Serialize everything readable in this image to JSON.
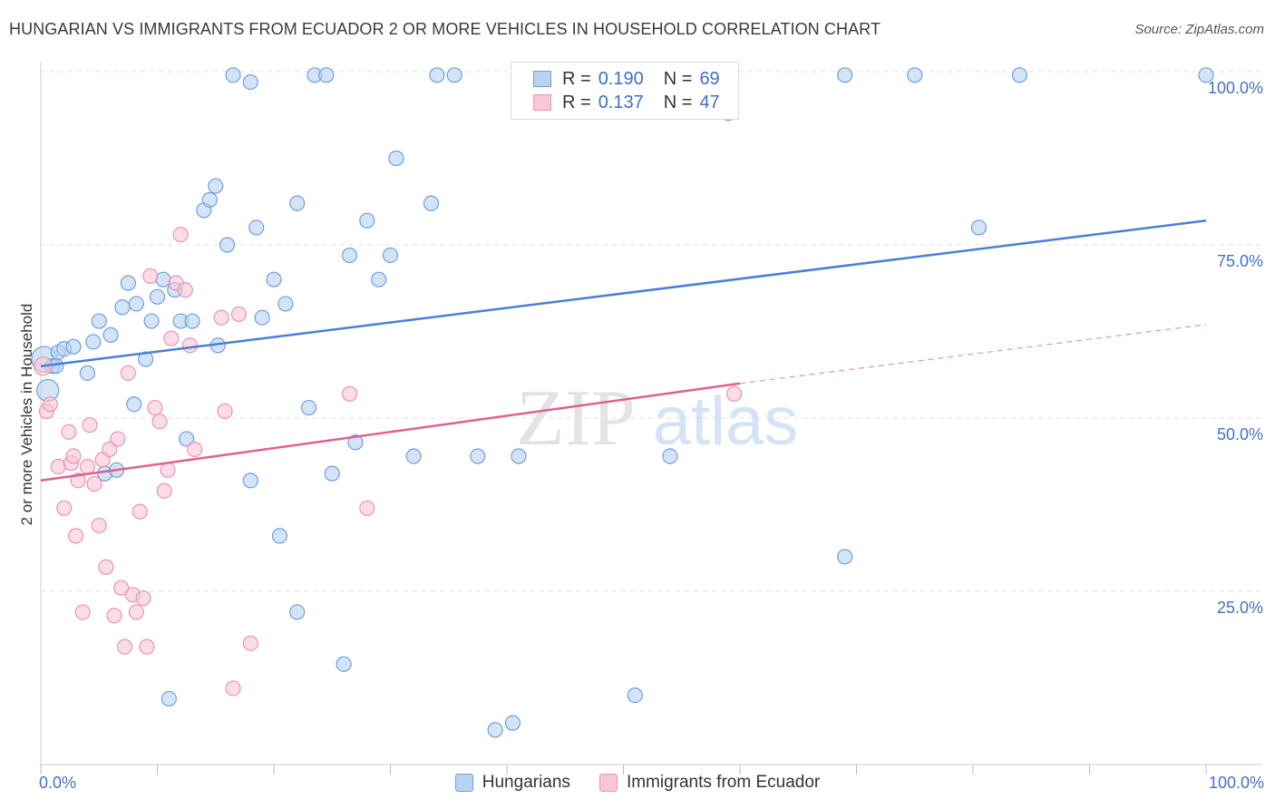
{
  "chart_data": {
    "type": "scatter",
    "title": "HUNGARIAN VS IMMIGRANTS FROM ECUADOR 2 OR MORE VEHICLES IN HOUSEHOLD CORRELATION CHART",
    "source": "Source: ZipAtlas.com",
    "ylabel": "2 or more Vehicles in Household",
    "xlim": [
      0,
      100
    ],
    "ylim": [
      0,
      100
    ],
    "x_tick_labels": [
      "0.0%",
      "100.0%"
    ],
    "y_ticks": [
      {
        "value": 25,
        "label": "25.0%"
      },
      {
        "value": 50,
        "label": "50.0%"
      },
      {
        "value": 75,
        "label": "75.0%"
      },
      {
        "value": 100,
        "label": "100.0%"
      }
    ],
    "watermark": {
      "part1": "ZIP",
      "part2": "atlas"
    },
    "legend": {
      "r_label": "R =",
      "n_label": "N =",
      "rows": [
        {
          "r": "0.190",
          "n": "69"
        },
        {
          "r": "0.137",
          "n": "47"
        }
      ]
    },
    "series": [
      {
        "name": "Hungarians",
        "color": "#4a7fd4",
        "fill": "#b8d2f2",
        "stroke": "#6f9ee0",
        "trend": {
          "x0": 0,
          "y0": 57.5,
          "x1": 100,
          "y1": 78.5
        },
        "points": [
          [
            0.3,
            58.5,
            14
          ],
          [
            0.6,
            54,
            12
          ],
          [
            1,
            57.5,
            8
          ],
          [
            1.5,
            59.5,
            8
          ],
          [
            2,
            60,
            8
          ],
          [
            2.8,
            60.3,
            8
          ],
          [
            1.3,
            57.5,
            8
          ],
          [
            4,
            56.5,
            8
          ],
          [
            4.5,
            61,
            8
          ],
          [
            5,
            64,
            8
          ],
          [
            6,
            62,
            8
          ],
          [
            5.5,
            42,
            8
          ],
          [
            6.5,
            42.5,
            8
          ],
          [
            7,
            66,
            8
          ],
          [
            7.5,
            69.5,
            8
          ],
          [
            8.2,
            66.5,
            8
          ],
          [
            8,
            52,
            8
          ],
          [
            9,
            58.5,
            8
          ],
          [
            9.5,
            64,
            8
          ],
          [
            10,
            67.5,
            8
          ],
          [
            10.5,
            70,
            8
          ],
          [
            11.5,
            68.5,
            8
          ],
          [
            12,
            64,
            8
          ],
          [
            12.5,
            47,
            8
          ],
          [
            13,
            64,
            8
          ],
          [
            11,
            9.5,
            8
          ],
          [
            14,
            80,
            8
          ],
          [
            14.5,
            81.5,
            8
          ],
          [
            15,
            83.5,
            8
          ],
          [
            15.2,
            60.5,
            8
          ],
          [
            16,
            75,
            8
          ],
          [
            16.5,
            99.5,
            8
          ],
          [
            18,
            98.5,
            8
          ],
          [
            18.5,
            77.5,
            8
          ],
          [
            18,
            41,
            8
          ],
          [
            19,
            64.5,
            8
          ],
          [
            20,
            70,
            8
          ],
          [
            20.5,
            33,
            8
          ],
          [
            21,
            66.5,
            8
          ],
          [
            22,
            22,
            8
          ],
          [
            22,
            81,
            8
          ],
          [
            23,
            51.5,
            8
          ],
          [
            23.5,
            99.5,
            8
          ],
          [
            24.5,
            99.5,
            8
          ],
          [
            25,
            42,
            8
          ],
          [
            26,
            14.5,
            8
          ],
          [
            26.5,
            73.5,
            8
          ],
          [
            27,
            46.5,
            8
          ],
          [
            28,
            78.5,
            8
          ],
          [
            29,
            70,
            8
          ],
          [
            30,
            73.5,
            8
          ],
          [
            30.5,
            87.5,
            8
          ],
          [
            32,
            44.5,
            8
          ],
          [
            33.5,
            81,
            8
          ],
          [
            34,
            99.5,
            8
          ],
          [
            35.5,
            99.5,
            8
          ],
          [
            37.5,
            44.5,
            8
          ],
          [
            39,
            5,
            8
          ],
          [
            40.5,
            6,
            8
          ],
          [
            41,
            44.5,
            8
          ],
          [
            51,
            10,
            8
          ],
          [
            54,
            44.5,
            8
          ],
          [
            59,
            94,
            8
          ],
          [
            69,
            30,
            8
          ],
          [
            69,
            99.5,
            8
          ],
          [
            75,
            99.5,
            8
          ],
          [
            80.5,
            77.5,
            8
          ],
          [
            84,
            99.5,
            8
          ],
          [
            100,
            99.5,
            8
          ]
        ]
      },
      {
        "name": "Immigrants from Ecuador",
        "color": "#e06090",
        "fill": "#f8c6d6",
        "stroke": "#eb94b2",
        "trend": {
          "x0": 0,
          "y0": 41,
          "x1": 60,
          "y1": 55,
          "x2": 100,
          "y2": 63.5
        },
        "points": [
          [
            0.2,
            57.5,
            10
          ],
          [
            0.5,
            51,
            8
          ],
          [
            0.8,
            52,
            8
          ],
          [
            1.5,
            43,
            8
          ],
          [
            2,
            37,
            8
          ],
          [
            2.4,
            48,
            8
          ],
          [
            2.6,
            43.5,
            8
          ],
          [
            2.8,
            44.5,
            8
          ],
          [
            3,
            33,
            8
          ],
          [
            3.2,
            41,
            8
          ],
          [
            3.6,
            22,
            8
          ],
          [
            4,
            43,
            8
          ],
          [
            4.2,
            49,
            8
          ],
          [
            4.6,
            40.5,
            8
          ],
          [
            5,
            34.5,
            8
          ],
          [
            5.3,
            44,
            8
          ],
          [
            5.6,
            28.5,
            8
          ],
          [
            5.9,
            45.5,
            8
          ],
          [
            6.3,
            21.5,
            8
          ],
          [
            6.6,
            47,
            8
          ],
          [
            6.9,
            25.5,
            8
          ],
          [
            7.2,
            17,
            8
          ],
          [
            7.5,
            56.5,
            8
          ],
          [
            7.9,
            24.5,
            8
          ],
          [
            8.2,
            22,
            8
          ],
          [
            8.5,
            36.5,
            8
          ],
          [
            8.8,
            24,
            8
          ],
          [
            9.1,
            17,
            8
          ],
          [
            9.4,
            70.5,
            8
          ],
          [
            9.8,
            51.5,
            8
          ],
          [
            10.2,
            49.5,
            8
          ],
          [
            10.6,
            39.5,
            8
          ],
          [
            10.9,
            42.5,
            8
          ],
          [
            11.2,
            61.5,
            8
          ],
          [
            11.6,
            69.5,
            8
          ],
          [
            12,
            76.5,
            8
          ],
          [
            12.4,
            68.5,
            8
          ],
          [
            12.8,
            60.5,
            8
          ],
          [
            13.2,
            45.5,
            8
          ],
          [
            15.5,
            64.5,
            8
          ],
          [
            15.8,
            51,
            8
          ],
          [
            16.5,
            11,
            8
          ],
          [
            17,
            65,
            8
          ],
          [
            18,
            17.5,
            8
          ],
          [
            26.5,
            53.5,
            8
          ],
          [
            28,
            37,
            8
          ],
          [
            59.5,
            53.5,
            8
          ]
        ]
      }
    ]
  }
}
